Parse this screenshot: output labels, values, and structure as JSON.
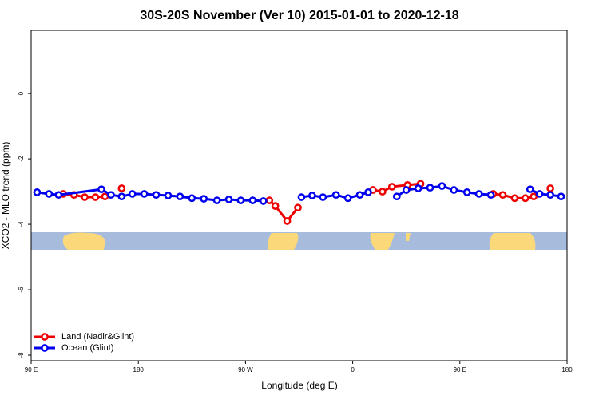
{
  "chart_data": {
    "type": "line",
    "title": "30S-20S November (Ver 10)   2015-01-01 to 2020-12-18",
    "x_label": "Longitude (deg E)",
    "y_label": "XCO2 - MLO trend (ppm)",
    "xlim": [
      90,
      540
    ],
    "xticks": [
      {
        "value": 90,
        "label": "90 E"
      },
      180,
      {
        "value": 270,
        "label": "90 W"
      },
      {
        "value": 360,
        "label": "0"
      },
      {
        "value": 450,
        "label": "90 E"
      },
      {
        "value": 540,
        "label": "180"
      }
    ],
    "ylim": [
      -8.17,
      1.93
    ],
    "yticks": [
      0,
      -2,
      -4,
      -6,
      -8
    ],
    "legend": "bottom-left",
    "series": [
      {
        "name": "Land (Nadir&Glint)",
        "color": "#ee0000",
        "x": [
          117,
          126,
          135,
          144,
          152,
          null,
          166,
          null,
          290,
          295,
          305,
          314,
          null,
          377,
          385,
          393,
          406,
          417,
          null,
          478,
          486,
          496,
          505,
          512,
          null,
          526
        ],
        "values": [
          -3.07,
          -3.1,
          -3.17,
          -3.17,
          -3.15,
          null,
          -2.9,
          null,
          -3.27,
          -3.44,
          -3.9,
          -3.49,
          null,
          -2.95,
          -3.0,
          -2.85,
          -2.8,
          -2.76,
          null,
          -3.07,
          -3.1,
          -3.2,
          -3.2,
          -3.15,
          null,
          -2.9
        ]
      },
      {
        "name": "Ocean (Glint)",
        "color": "#0000ee",
        "x": [
          95,
          105,
          113,
          149,
          157,
          166,
          175,
          185,
          195,
          205,
          215,
          225,
          235,
          246,
          256,
          266,
          276,
          285,
          null,
          317,
          326,
          335,
          346,
          356,
          366,
          373,
          null,
          397,
          405,
          415,
          425,
          435,
          445,
          456,
          466,
          476,
          null,
          509,
          517,
          526,
          535
        ],
        "values": [
          -3.02,
          -3.07,
          -3.1,
          -2.93,
          -3.1,
          -3.15,
          -3.07,
          -3.07,
          -3.1,
          -3.12,
          -3.15,
          -3.2,
          -3.22,
          -3.27,
          -3.24,
          -3.27,
          -3.27,
          -3.29,
          null,
          -3.17,
          -3.12,
          -3.17,
          -3.1,
          -3.2,
          -3.1,
          -3.02,
          null,
          -3.15,
          -2.95,
          -2.9,
          -2.88,
          -2.83,
          -2.95,
          -3.02,
          -3.07,
          -3.1,
          null,
          -2.93,
          -3.07,
          -3.1,
          -3.15
        ]
      }
    ]
  }
}
